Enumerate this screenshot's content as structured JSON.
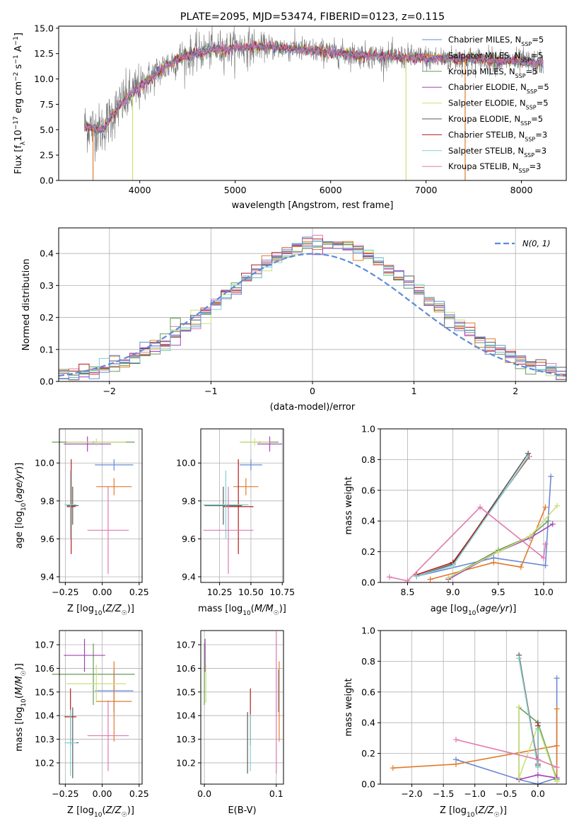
{
  "colors": [
    "#6a89d5",
    "#e07b2a",
    "#6a9a58",
    "#a341b8",
    "#c8e07a",
    "#5a5a5a",
    "#b41d1d",
    "#7fd3d3",
    "#e07aaf"
  ],
  "chart_data": [
    {
      "type": "line",
      "title": "PLATE=2095, MJD=53474, FIBERID=0123, z=0.115",
      "xlabel": "wavelength [Angstrom, rest frame]",
      "ylabel": "Flux [f_λ10^-17 erg cm^-2 s^-1 A^-1]",
      "xlim": [
        3150,
        8470
      ],
      "ylim": [
        0,
        15.2
      ],
      "xticks": [
        4000,
        5000,
        6000,
        7000,
        8000
      ],
      "yticks": [
        0.0,
        2.5,
        5.0,
        7.5,
        10.0,
        12.5,
        15.0
      ],
      "continuum": {
        "x": [
          3420,
          3600,
          3800,
          4000,
          4200,
          4400,
          4700,
          5000,
          5300,
          5600,
          6000,
          6400,
          6800,
          7200,
          7600,
          8000,
          8230
        ],
        "y": [
          5.4,
          5.0,
          7.5,
          9.2,
          10.8,
          12.0,
          12.8,
          13.1,
          13.2,
          13.0,
          12.6,
          12.3,
          12.1,
          12.0,
          11.9,
          11.7,
          11.5
        ]
      },
      "legend_position": "right",
      "series": [
        {
          "name": "Chabrier MILES, N_SSP=5"
        },
        {
          "name": "Salpeter MILES, N_SSP=5"
        },
        {
          "name": "Kroupa MILES, N_SSP=5"
        },
        {
          "name": "Chabrier ELODIE, N_SSP=5"
        },
        {
          "name": "Salpeter ELODIE, N_SSP=5"
        },
        {
          "name": "Kroupa ELODIE, N_SSP=5"
        },
        {
          "name": "Chabrier STELIB, N_SSP=3"
        },
        {
          "name": "Salpeter STELIB, N_SSP=3"
        },
        {
          "name": "Kroupa STELIB, N_SSP=3"
        }
      ]
    },
    {
      "type": "histogram",
      "xlabel": "(data-model)/error",
      "ylabel": "Normed distribution",
      "xlim": [
        -2.5,
        2.5
      ],
      "ylim": [
        0,
        0.48
      ],
      "xticks": [
        -2,
        -1,
        0,
        1,
        2
      ],
      "yticks": [
        0.0,
        0.1,
        0.2,
        0.3,
        0.4
      ],
      "grid": true,
      "legend": "N(0, 1)",
      "bin_width": 0.1,
      "bins_from": -2.5
    },
    {
      "type": "errorbar",
      "xlabel": "Z [log10(Z/Z☉)]",
      "ylabel": "age  [log10(age/yr)]",
      "xlim": [
        -0.29,
        0.27
      ],
      "ylim": [
        9.37,
        10.18
      ],
      "xticks": [
        -0.25,
        0.0,
        0.25
      ],
      "yticks": [
        9.4,
        9.6,
        9.8,
        10.0
      ],
      "points": [
        {
          "x": 0.08,
          "y": 9.99,
          "xerr": 0.13,
          "yerr": 0.03
        },
        {
          "x": 0.08,
          "y": 9.875,
          "xerr": 0.12,
          "yerr": 0.045
        },
        {
          "x": -0.06,
          "y": 10.11,
          "xerr": 0.28,
          "yerr": 0.005
        },
        {
          "x": -0.1,
          "y": 10.1,
          "xerr": 0.16,
          "yerr": 0.04
        },
        {
          "x": -0.04,
          "y": 10.11,
          "xerr": 0.2,
          "yerr": 0.02
        },
        {
          "x": -0.2,
          "y": 9.775,
          "xerr": 0.04,
          "yerr": 0.1
        },
        {
          "x": -0.21,
          "y": 9.77,
          "xerr": 0.03,
          "yerr": 0.25
        },
        {
          "x": -0.215,
          "y": 9.78,
          "xerr": 0.04,
          "yerr": 0.18
        },
        {
          "x": 0.04,
          "y": 9.645,
          "xerr": 0.14,
          "yerr": 0.23
        }
      ]
    },
    {
      "type": "errorbar",
      "xlabel": "mass [log10(M/M☉)]",
      "ylabel": "",
      "xlim": [
        10.1,
        10.76
      ],
      "ylim": [
        9.37,
        10.18
      ],
      "xticks": [
        10.25,
        10.5,
        10.75
      ],
      "yticks": [
        9.4,
        9.6,
        9.8,
        10.0
      ],
      "points": [
        {
          "x": 10.5,
          "y": 9.99,
          "xerr": 0.09,
          "yerr": 0.03
        },
        {
          "x": 10.46,
          "y": 9.875,
          "xerr": 0.1,
          "yerr": 0.045
        },
        {
          "x": 10.57,
          "y": 10.11,
          "xerr": 0.15,
          "yerr": 0.005
        },
        {
          "x": 10.65,
          "y": 10.1,
          "xerr": 0.1,
          "yerr": 0.04
        },
        {
          "x": 10.53,
          "y": 10.11,
          "xerr": 0.12,
          "yerr": 0.02
        },
        {
          "x": 10.28,
          "y": 9.775,
          "xerr": 0.15,
          "yerr": 0.1
        },
        {
          "x": 10.4,
          "y": 9.77,
          "xerr": 0.12,
          "yerr": 0.25
        },
        {
          "x": 10.3,
          "y": 9.78,
          "xerr": 0.18,
          "yerr": 0.18
        },
        {
          "x": 10.32,
          "y": 9.645,
          "xerr": 0.2,
          "yerr": 0.23
        }
      ]
    },
    {
      "type": "line",
      "xlabel": "age  [log10(age/yr)]",
      "ylabel": "mass weight",
      "xlim": [
        8.2,
        10.25
      ],
      "ylim": [
        0,
        1.0
      ],
      "xticks": [
        8.5,
        9.0,
        9.5,
        10.0
      ],
      "yticks": [
        0.0,
        0.2,
        0.4,
        0.6,
        0.8,
        1.0
      ],
      "grid": true,
      "series": [
        {
          "x": [
            8.6,
            9.45,
            10.02,
            10.08
          ],
          "y": [
            0.04,
            0.16,
            0.11,
            0.69
          ]
        },
        {
          "x": [
            8.75,
            9.45,
            9.75,
            10.02
          ],
          "y": [
            0.02,
            0.13,
            0.1,
            0.49
          ]
        },
        {
          "x": [
            8.95,
            9.5,
            9.85,
            10.05
          ],
          "y": [
            0.03,
            0.21,
            0.3,
            0.4
          ]
        },
        {
          "x": [
            8.95,
            9.5,
            9.85,
            10.1
          ],
          "y": [
            0.02,
            0.2,
            0.29,
            0.38
          ]
        },
        {
          "x": [
            8.95,
            9.5,
            9.85,
            10.15
          ],
          "y": [
            0.03,
            0.2,
            0.3,
            0.5
          ]
        },
        {
          "x": [
            8.6,
            9.0,
            9.83
          ],
          "y": [
            0.04,
            0.12,
            0.84
          ]
        },
        {
          "x": [
            8.6,
            9.0,
            9.84
          ],
          "y": [
            0.05,
            0.13,
            0.82
          ]
        },
        {
          "x": [
            8.6,
            9.0,
            9.83
          ],
          "y": [
            0.04,
            0.11,
            0.82
          ]
        },
        {
          "x": [
            8.3,
            8.5,
            9.3,
            10.0,
            10.02
          ],
          "y": [
            0.035,
            0.01,
            0.49,
            0.16,
            0.25
          ]
        }
      ]
    },
    {
      "type": "errorbar",
      "xlabel": "Z [log10(Z/Z☉)]",
      "ylabel": "mass [log10(M/M☉)]",
      "xlim": [
        -0.29,
        0.27
      ],
      "ylim": [
        10.11,
        10.76
      ],
      "xticks": [
        -0.25,
        0.0,
        0.25
      ],
      "yticks": [
        10.2,
        10.3,
        10.4,
        10.5,
        10.6,
        10.7
      ],
      "points": [
        {
          "x": 0.08,
          "y": 10.505,
          "xerr": 0.13,
          "yerr": 0.09
        },
        {
          "x": 0.08,
          "y": 10.46,
          "xerr": 0.12,
          "yerr": 0.17
        },
        {
          "x": -0.06,
          "y": 10.575,
          "xerr": 0.28,
          "yerr": 0.13
        },
        {
          "x": -0.12,
          "y": 10.655,
          "xerr": 0.14,
          "yerr": 0.07
        },
        {
          "x": -0.04,
          "y": 10.535,
          "xerr": 0.2,
          "yerr": 0.08
        },
        {
          "x": -0.2,
          "y": 10.285,
          "xerr": 0.04,
          "yerr": 0.15
        },
        {
          "x": -0.215,
          "y": 10.395,
          "xerr": 0.04,
          "yerr": 0.12
        },
        {
          "x": -0.215,
          "y": 10.285,
          "xerr": 0.04,
          "yerr": 0.14
        },
        {
          "x": 0.04,
          "y": 10.315,
          "xerr": 0.14,
          "yerr": 0.15
        }
      ]
    },
    {
      "type": "errorbar",
      "xlabel": "E(B-V)",
      "ylabel": "",
      "xlim": [
        -0.005,
        0.11
      ],
      "ylim": [
        10.11,
        10.76
      ],
      "xticks": [
        0.0,
        0.1
      ],
      "yticks": [
        10.2,
        10.3,
        10.4,
        10.5,
        10.6,
        10.7
      ],
      "points": [
        {
          "x": 0.103,
          "y": 10.505,
          "xerr": 0,
          "yerr": 0.09
        },
        {
          "x": 0.104,
          "y": 10.46,
          "xerr": 0,
          "yerr": 0.17
        },
        {
          "x": 0.0,
          "y": 10.575,
          "xerr": 0,
          "yerr": 0.13
        },
        {
          "x": 0.001,
          "y": 10.655,
          "xerr": 0,
          "yerr": 0.07
        },
        {
          "x": 0.002,
          "y": 10.535,
          "xerr": 0,
          "yerr": 0.08
        },
        {
          "x": 0.06,
          "y": 10.285,
          "xerr": 0,
          "yerr": 0.13
        },
        {
          "x": 0.064,
          "y": 10.395,
          "xerr": 0,
          "yerr": 0.12
        },
        {
          "x": 0.064,
          "y": 10.285,
          "xerr": 0,
          "yerr": 0.12
        },
        {
          "x": 0.1,
          "y": 10.455,
          "xerr": 0,
          "yerr": 0.3
        }
      ]
    },
    {
      "type": "line",
      "xlabel": "Z [log10(Z/Z☉)]",
      "ylabel": "mass weight",
      "xlim": [
        -2.5,
        0.45
      ],
      "ylim": [
        0,
        1.0
      ],
      "xticks": [
        -2.0,
        -1.5,
        -1.0,
        -0.5,
        0.0
      ],
      "yticks": [
        0.0,
        0.2,
        0.4,
        0.6,
        0.8,
        1.0
      ],
      "grid": true,
      "series": [
        {
          "x": [
            -1.3,
            -0.3,
            0.0,
            0.3,
            0.3
          ],
          "y": [
            0.16,
            0.03,
            0.0,
            0.04,
            0.69
          ]
        },
        {
          "x": [
            -2.3,
            -1.3,
            0.3,
            0.3,
            0.3
          ],
          "y": [
            0.105,
            0.13,
            0.25,
            0.49,
            0.02
          ]
        },
        {
          "x": [
            -0.3,
            -0.3,
            0.0,
            0.3
          ],
          "y": [
            0.04,
            0.5,
            0.4,
            0.03
          ]
        },
        {
          "x": [
            -0.3,
            0.0,
            0.3
          ],
          "y": [
            0.03,
            0.06,
            0.04
          ]
        },
        {
          "x": [
            -0.3,
            -0.3,
            0.0,
            0.3
          ],
          "y": [
            0.5,
            0.04,
            0.38,
            0.02
          ]
        },
        {
          "x": [
            -0.3,
            0.0,
            0.0
          ],
          "y": [
            0.84,
            0.12,
            0.4
          ]
        },
        {
          "x": [
            -0.3,
            0.0,
            0.0
          ],
          "y": [
            0.82,
            0.13,
            0.38
          ]
        },
        {
          "x": [
            -0.3,
            0.0,
            0.0
          ],
          "y": [
            0.82,
            0.11,
            0.36
          ]
        },
        {
          "x": [
            -1.3,
            0.0,
            0.3
          ],
          "y": [
            0.29,
            0.16,
            0.11
          ]
        }
      ]
    }
  ]
}
